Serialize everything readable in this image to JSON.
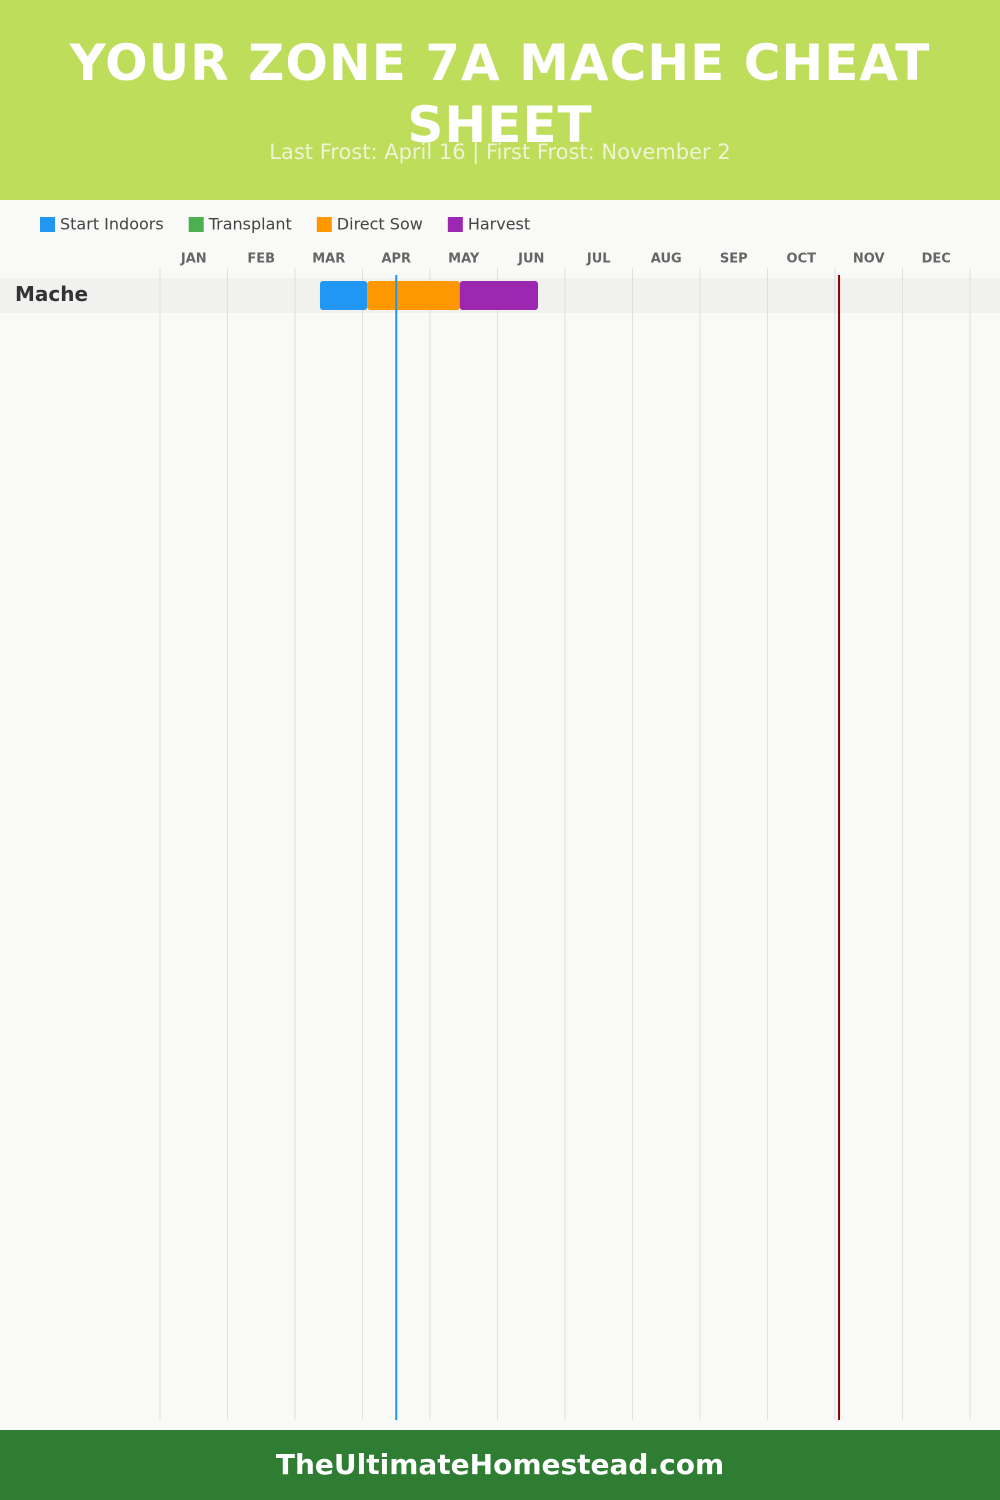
{
  "header": {
    "title": "YOUR ZONE 7A MACHE CHEAT SHEET",
    "subtitle": "Last Frost: April 16 | First Frost: November 2"
  },
  "chart_data": {
    "type": "gantt",
    "categories": [
      "JAN",
      "FEB",
      "MAR",
      "APR",
      "MAY",
      "JUN",
      "JUL",
      "AUG",
      "SEP",
      "OCT",
      "NOV",
      "DEC"
    ],
    "xlim": [
      0,
      12
    ],
    "grid": true,
    "series": [
      {
        "name": "Start Indoors",
        "color": "#2196f3"
      },
      {
        "name": "Transplant",
        "color": "#4caf50"
      },
      {
        "name": "Direct Sow",
        "color": "#ff9800"
      },
      {
        "name": "Harvest",
        "color": "#9c27b0"
      }
    ],
    "rows": [
      {
        "label": "Mache",
        "segments": [
          {
            "series": 0,
            "start": 2.37,
            "end": 3.07
          },
          {
            "series": 2,
            "start": 3.07,
            "end": 4.44
          },
          {
            "series": 3,
            "start": 4.44,
            "end": 5.6
          }
        ]
      }
    ],
    "frost_lines": [
      {
        "value": 3.5,
        "color": "#2196f3"
      },
      {
        "value": 10.06,
        "color": "#8b0000"
      }
    ]
  },
  "footer": {
    "text": "TheUltimateHomestead.com"
  }
}
